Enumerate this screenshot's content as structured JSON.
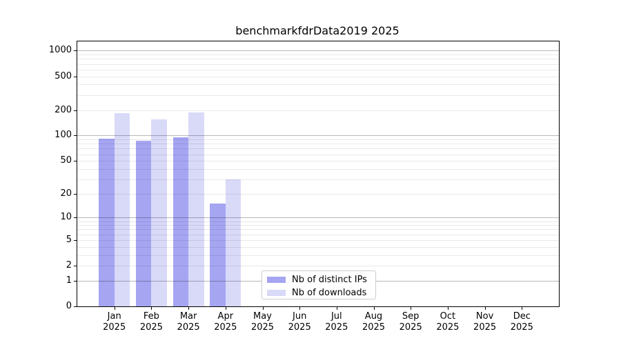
{
  "chart_data": {
    "type": "bar",
    "title": "benchmarkfdrData2019 2025",
    "months": [
      "Jan",
      "Feb",
      "Mar",
      "Apr",
      "May",
      "Jun",
      "Jul",
      "Aug",
      "Sep",
      "Oct",
      "Nov",
      "Dec"
    ],
    "year": "2025",
    "categories": [
      "Jan 2025",
      "Feb 2025",
      "Mar 2025",
      "Apr 2025",
      "May 2025",
      "Jun 2025",
      "Jul 2025",
      "Aug 2025",
      "Sep 2025",
      "Oct 2025",
      "Nov 2025",
      "Dec 2025"
    ],
    "series": [
      {
        "name": "Nb of distinct IPs",
        "color": "#a5a5f2",
        "values": [
          92,
          86,
          95,
          15,
          0,
          0,
          0,
          0,
          0,
          0,
          0,
          0
        ]
      },
      {
        "name": "Nb of downloads",
        "color": "#d9d9f8",
        "values": [
          183,
          155,
          187,
          30,
          0,
          0,
          0,
          0,
          0,
          0,
          0,
          0
        ]
      }
    ],
    "y_ticks": [
      1000,
      500,
      200,
      100,
      50,
      20,
      10,
      5,
      2,
      1,
      0
    ],
    "scale": "log1p",
    "ylim": [
      0,
      1283
    ],
    "grid": "horizontal",
    "legend_position": "inside-bottom-center"
  }
}
